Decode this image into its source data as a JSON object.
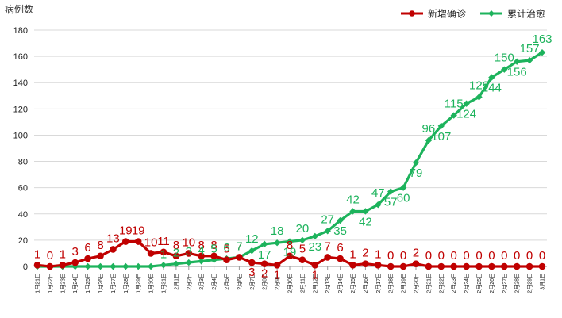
{
  "chart_data": {
    "type": "line",
    "ylabel": "病例数",
    "ylim": [
      0,
      180
    ],
    "yticks": [
      0,
      20,
      40,
      60,
      80,
      100,
      120,
      140,
      160,
      180
    ],
    "grid": "horizontal",
    "legend_position": "top-right",
    "categories": [
      "1月21日",
      "1月22日",
      "1月23日",
      "1月24日",
      "1月25日",
      "1月26日",
      "1月27日",
      "1月28日",
      "1月29日",
      "1月30日",
      "1月31日",
      "2月1日",
      "2月2日",
      "2月3日",
      "2月4日",
      "2月5日",
      "2月6日",
      "2月7日",
      "2月8日",
      "2月9日",
      "2月10日",
      "2月11日",
      "2月12日",
      "2月13日",
      "2月14日",
      "2月15日",
      "2月16日",
      "2月17日",
      "2月18日",
      "2月19日",
      "2月20日",
      "2月21日",
      "2月22日",
      "2月23日",
      "2月24日",
      "2月25日",
      "2月26日",
      "2月27日",
      "2月28日",
      "2月29日",
      "3月1日"
    ],
    "series": [
      {
        "name": "新增确诊",
        "color": "#c00000",
        "marker": "circle",
        "values": [
          1,
          0,
          1,
          3,
          6,
          8,
          13,
          19,
          19,
          10,
          11,
          8,
          10,
          8,
          8,
          5,
          7,
          3,
          2,
          1,
          8,
          5,
          1,
          7,
          6,
          1,
          2,
          1,
          0,
          0,
          2,
          0,
          0,
          0,
          0,
          0,
          0,
          0,
          0,
          0,
          0
        ]
      },
      {
        "name": "累计治愈",
        "color": "#1db35c",
        "marker": "diamond",
        "values": [
          0,
          0,
          0,
          0,
          0,
          0,
          0,
          0,
          0,
          0,
          1,
          2,
          3,
          4,
          5,
          6,
          7,
          12,
          17,
          18,
          19,
          20,
          23,
          27,
          35,
          42,
          42,
          47,
          57,
          60,
          79,
          96,
          107,
          115,
          124,
          129,
          144,
          150,
          156,
          157,
          163
        ]
      }
    ],
    "point_labels": {
      "新增确诊": [
        "1",
        "0",
        "1",
        "3",
        "6",
        "8",
        "13",
        "19",
        "19",
        "10",
        "11",
        "8",
        "10",
        "8",
        "8",
        "5",
        "7",
        "3",
        "2",
        "1",
        "8",
        "5",
        "1",
        "7",
        "6",
        "1",
        "2",
        "1",
        "0",
        "0",
        "2",
        "0",
        "0",
        "0",
        "0",
        "0",
        "0",
        "0",
        "0",
        "0",
        "0"
      ],
      "累计治愈": [
        "",
        "",
        "",
        "",
        "",
        "",
        "",
        "",
        "",
        "",
        "1",
        "2",
        "3",
        "4",
        "5",
        "6",
        "7",
        "12",
        "17",
        "18",
        "19",
        "20",
        "23",
        "27",
        "35",
        "42",
        "42",
        "47",
        "57",
        "60",
        "79",
        "96",
        "107",
        "115",
        "124",
        "129",
        "144",
        "150",
        "156",
        "157",
        "163"
      ]
    }
  }
}
